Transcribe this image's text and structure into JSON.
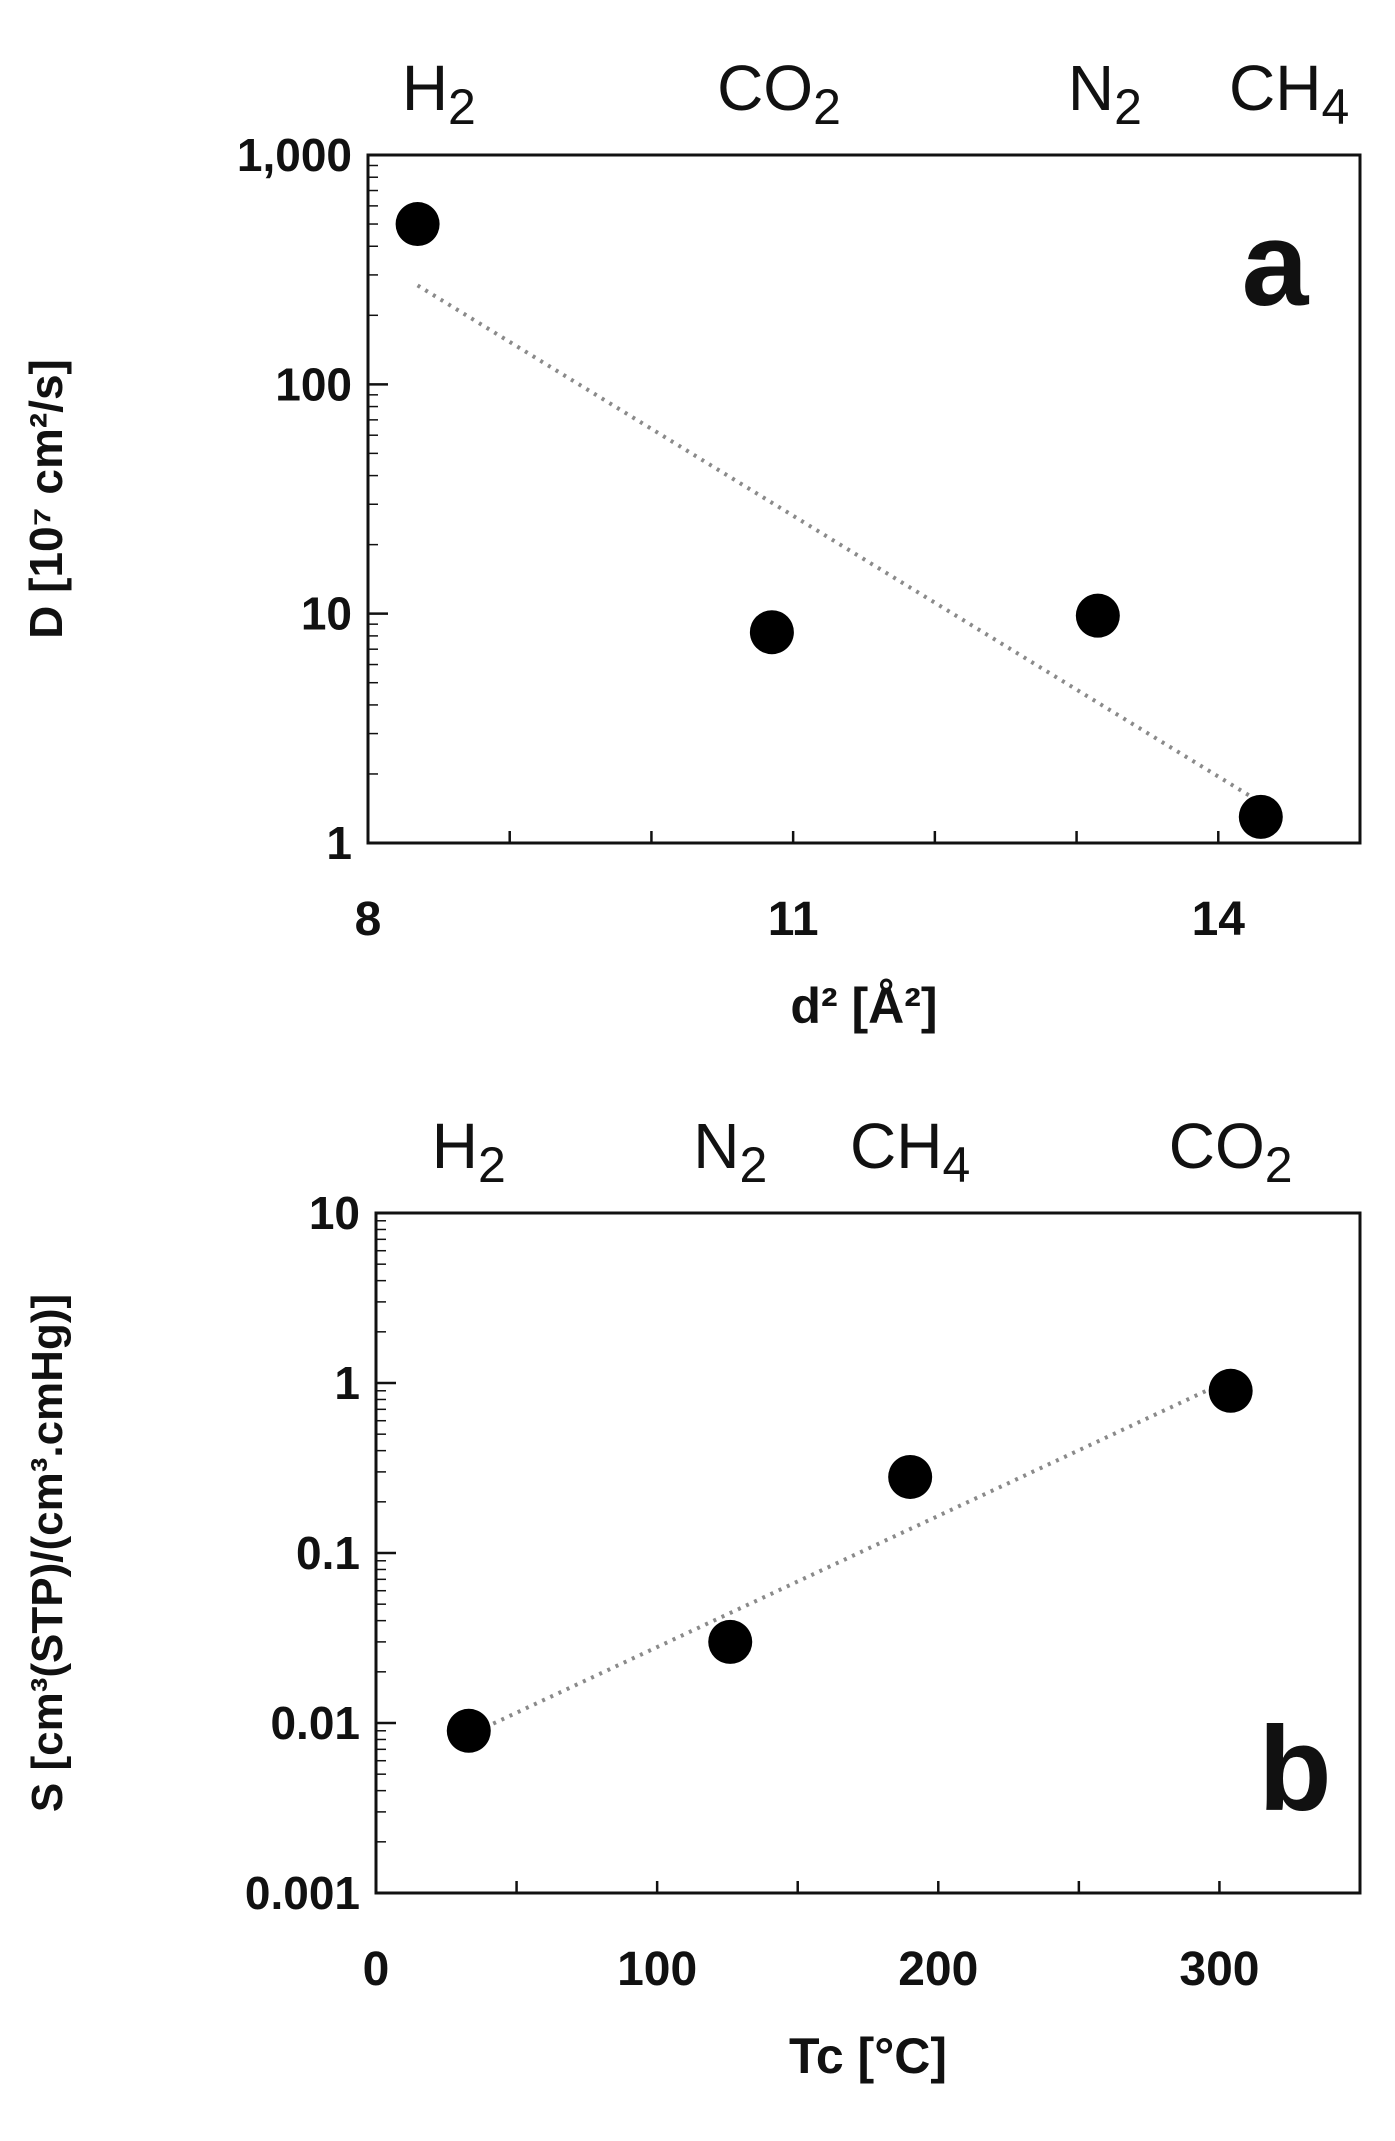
{
  "chart_data": [
    {
      "type": "scatter",
      "panel": "a",
      "xlabel": "d² [Å²]",
      "ylabel": "D [10⁷ cm²/s]",
      "xlim": [
        8,
        15
      ],
      "ylim": [
        1,
        1000
      ],
      "yscale": "log",
      "xticks": [
        8,
        11,
        14
      ],
      "xtick_labels": [
        "8",
        "11",
        "14"
      ],
      "yticks": [
        1,
        10,
        100,
        1000
      ],
      "ytick_labels": [
        "1",
        "10",
        "100",
        "1,000"
      ],
      "top_labels": [
        {
          "base": "H",
          "sub": "2",
          "x": 8.5
        },
        {
          "base": "CO",
          "sub": "2",
          "x": 10.9
        },
        {
          "base": "N",
          "sub": "2",
          "x": 13.2
        },
        {
          "base": "CH",
          "sub": "4",
          "x": 14.5
        }
      ],
      "points": [
        {
          "gas": "H2",
          "x": 8.35,
          "y": 500
        },
        {
          "gas": "CO2",
          "x": 10.85,
          "y": 8.3
        },
        {
          "gas": "N2",
          "x": 13.15,
          "y": 9.8
        },
        {
          "gas": "CH4",
          "x": 14.3,
          "y": 1.3
        }
      ],
      "trendline": {
        "x": [
          8.35,
          14.3
        ],
        "y": [
          270,
          1.5
        ]
      },
      "grid": false
    },
    {
      "type": "scatter",
      "panel": "b",
      "xlabel": "Tc [°C]",
      "ylabel": "S [cm³(STP)/(cm³.cmHg)]",
      "xlim": [
        0,
        350
      ],
      "ylim": [
        0.001,
        10
      ],
      "yscale": "log",
      "xticks": [
        0,
        100,
        200,
        300
      ],
      "xtick_labels": [
        "0",
        "100",
        "200",
        "300"
      ],
      "yticks": [
        0.001,
        0.01,
        0.1,
        1,
        10
      ],
      "ytick_labels": [
        "0.001",
        "0.01",
        "0.1",
        "1",
        "10"
      ],
      "top_labels": [
        {
          "base": "H",
          "sub": "2",
          "x": 33
        },
        {
          "base": "N",
          "sub": "2",
          "x": 126
        },
        {
          "base": "CH",
          "sub": "4",
          "x": 190
        },
        {
          "base": "CO",
          "sub": "2",
          "x": 304
        }
      ],
      "points": [
        {
          "gas": "H2",
          "x": 33,
          "y": 0.009
        },
        {
          "gas": "N2",
          "x": 126,
          "y": 0.03
        },
        {
          "gas": "CH4",
          "x": 190,
          "y": 0.28
        },
        {
          "gas": "CO2",
          "x": 304,
          "y": 0.9
        }
      ],
      "trendline": {
        "x": [
          33,
          304
        ],
        "y": [
          0.0085,
          1.05
        ]
      },
      "grid": false
    }
  ]
}
